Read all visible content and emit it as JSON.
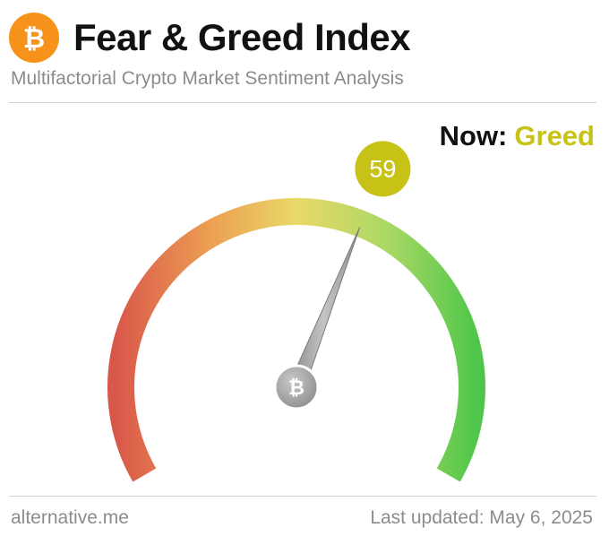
{
  "header": {
    "title": "Fear & Greed Index",
    "subtitle": "Multifactorial Crypto Market Sentiment Analysis",
    "logo_icon": "bitcoin-icon",
    "logo_symbol": "₿",
    "logo_color": "#f7931a"
  },
  "status": {
    "label": "Now:",
    "classification": "Greed",
    "classification_color": "#c7c316"
  },
  "gauge": {
    "value": 59,
    "value_label": "59",
    "min": 0,
    "max": 100,
    "badge_color": "#c7c316",
    "center_icon": "bitcoin-icon",
    "center_symbol": "₿",
    "colors": [
      "#d9574a",
      "#ec9f52",
      "#ead868",
      "#a8d864",
      "#4fc64a"
    ]
  },
  "footer": {
    "source": "alternative.me",
    "updated": "Last updated: May 6, 2025"
  }
}
